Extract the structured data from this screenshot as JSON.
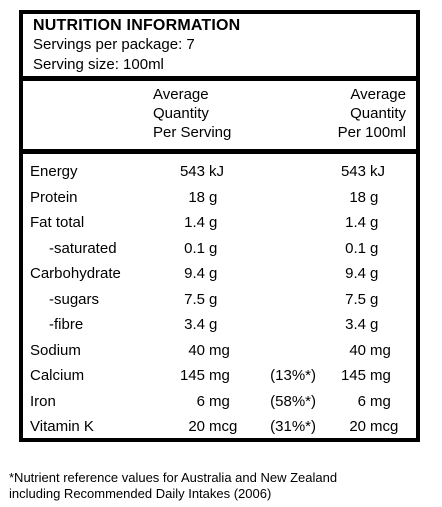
{
  "panel": {
    "title": "NUTRITION INFORMATION",
    "servings_per_package": "Servings per package: 7",
    "serving_size": "Serving size: 100ml"
  },
  "headers": {
    "per_serving": [
      "Average",
      "Quantity",
      "Per Serving"
    ],
    "per_100ml": [
      "Average",
      "Quantity",
      "Per 100ml"
    ]
  },
  "rows": [
    {
      "name": "Energy",
      "indent": false,
      "serv_value": "543",
      "serv_unit": "kJ",
      "ri": "",
      "p100_value": "543",
      "p100_unit": "kJ"
    },
    {
      "name": "Protein",
      "indent": false,
      "serv_value": "18",
      "serv_unit": "g",
      "ri": "",
      "p100_value": "18",
      "p100_unit": "g"
    },
    {
      "name": "Fat total",
      "indent": false,
      "serv_value": "1.4",
      "serv_unit": "g",
      "ri": "",
      "p100_value": "1.4",
      "p100_unit": "g"
    },
    {
      "name": "-saturated",
      "indent": true,
      "serv_value": "0.1",
      "serv_unit": "g",
      "ri": "",
      "p100_value": "0.1",
      "p100_unit": "g"
    },
    {
      "name": "Carbohydrate",
      "indent": false,
      "serv_value": "9.4",
      "serv_unit": "g",
      "ri": "",
      "p100_value": "9.4",
      "p100_unit": "g"
    },
    {
      "name": "-sugars",
      "indent": true,
      "serv_value": "7.5",
      "serv_unit": "g",
      "ri": "",
      "p100_value": "7.5",
      "p100_unit": "g"
    },
    {
      "name": "-fibre",
      "indent": true,
      "serv_value": "3.4",
      "serv_unit": "g",
      "ri": "",
      "p100_value": "3.4",
      "p100_unit": "g"
    },
    {
      "name": "Sodium",
      "indent": false,
      "serv_value": "40",
      "serv_unit": "mg",
      "ri": "",
      "p100_value": "40",
      "p100_unit": "mg"
    },
    {
      "name": "Calcium",
      "indent": false,
      "serv_value": "145",
      "serv_unit": "mg",
      "ri": "(13%*)",
      "p100_value": "145",
      "p100_unit": "mg"
    },
    {
      "name": "Iron",
      "indent": false,
      "serv_value": "6",
      "serv_unit": "mg",
      "ri": "(58%*)",
      "p100_value": "6",
      "p100_unit": "mg"
    },
    {
      "name": "Vitamin K",
      "indent": false,
      "serv_value": "20",
      "serv_unit": "mcg",
      "ri": "(31%*)",
      "p100_value": "20",
      "p100_unit": "mcg"
    }
  ],
  "footnote": [
    "*Nutrient reference values for Australia and New Zealand",
    "including Recommended Daily Intakes (2006)"
  ]
}
